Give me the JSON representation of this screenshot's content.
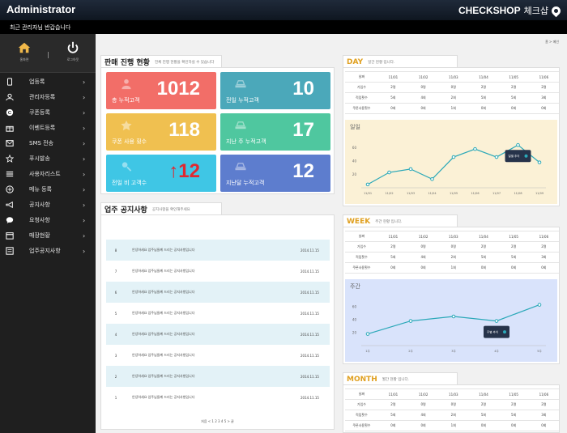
{
  "header": {
    "title": "Administrator",
    "brand": "CHECKSHOP",
    "brand_sub": "체크샵"
  },
  "notice": "최근 관리자님 반갑습니다",
  "sidebar": {
    "home_label": "홈화면",
    "logout_label": "로그아웃",
    "items": [
      {
        "label": "업등록",
        "icon": "phone-icon"
      },
      {
        "label": "관리자등록",
        "icon": "user-icon"
      },
      {
        "label": "쿠폰등록",
        "icon": "coupon-icon"
      },
      {
        "label": "이벤트등록",
        "icon": "gift-icon"
      },
      {
        "label": "SMS 전송",
        "icon": "mail-icon"
      },
      {
        "label": "푸시발송",
        "icon": "star-icon"
      },
      {
        "label": "사용자리스트",
        "icon": "list-icon"
      },
      {
        "label": "메뉴 등록",
        "icon": "plus-icon"
      },
      {
        "label": "공지사항",
        "icon": "megaphone-icon"
      },
      {
        "label": "요청사항",
        "icon": "chat-icon"
      },
      {
        "label": "매장현황",
        "icon": "calendar-icon"
      },
      {
        "label": "업주공지사항",
        "icon": "board-icon"
      }
    ]
  },
  "breadcrumb": "홈 > 메인",
  "sales_panel": {
    "title": "판매 진행 현황",
    "subtitle": "전체 진행 현황을 확인하실 수 있습니다",
    "cards": [
      {
        "label": "총 누적고객",
        "value": "1012",
        "color": "#f26e68",
        "icon": "person-icon"
      },
      {
        "label": "전일 누적고객",
        "value": "10",
        "color": "#4ba8ba",
        "icon": "stack-icon"
      },
      {
        "label": "쿠폰 사용 횟수",
        "value": "118",
        "color": "#f0c050",
        "icon": "badge-icon"
      },
      {
        "label": "지난 주 누적고객",
        "value": "17",
        "color": "#4fc79f",
        "icon": "stack-icon"
      },
      {
        "label": "전일 비 고객수",
        "value": "12",
        "color": "#3fc6e5",
        "icon": "person-search-icon",
        "up_arrow": "↑"
      },
      {
        "label": "지난달 누적고객",
        "value": "12",
        "color": "#5d7dce",
        "icon": "stack-icon"
      }
    ]
  },
  "notice_panel": {
    "title": "업주 공지사항",
    "subtitle": "공지사항을 확인해주세요",
    "rows": [
      {
        "num": "8",
        "title": "안녕하세요 업주님들께 드리는 공지사항입니다",
        "date": "2014.11.15"
      },
      {
        "num": "7",
        "title": "안녕하세요 업주님들께 드리는 공지사항입니다",
        "date": "2014.11.15"
      },
      {
        "num": "6",
        "title": "안녕하세요 업주님들께 드리는 공지사항입니다",
        "date": "2014.11.15"
      },
      {
        "num": "5",
        "title": "안녕하세요 업주님들께 드리는 공지사항입니다",
        "date": "2014.11.15"
      },
      {
        "num": "4",
        "title": "안녕하세요 업주님들께 드리는 공지사항입니다",
        "date": "2014.11.15"
      },
      {
        "num": "3",
        "title": "안녕하세요 업주님들께 드리는 공지사항입니다",
        "date": "2014.11.15"
      },
      {
        "num": "2",
        "title": "안녕하세요 업주님들께 드리는 공지사항입니다",
        "date": "2014.11.15"
      },
      {
        "num": "1",
        "title": "안녕하세요 업주님들께 드리는 공지사항입니다",
        "date": "2014.11.15"
      }
    ],
    "pager": "처음 < 1 2 3 4 5 > 끝"
  },
  "day_panel": {
    "title": "DAY",
    "subtitle": "일간 현황 입니다.",
    "columns": [
      "날짜",
      "11/01",
      "11/02",
      "11/03",
      "11/04",
      "11/05",
      "11/06"
    ],
    "rows": [
      {
        "label": "가입수",
        "values": [
          "2명",
          "0명",
          "0명",
          "2명",
          "2명",
          "2명"
        ]
      },
      {
        "label": "적립횟수",
        "values": [
          "5회",
          "4회",
          "2회",
          "5회",
          "5회",
          "3회"
        ]
      },
      {
        "label": "쿠폰사용횟수",
        "values": [
          "0회",
          "0회",
          "1회",
          "0회",
          "0회",
          "0회"
        ]
      }
    ],
    "chart_title": "일일",
    "tooltip_label": "일별 추이"
  },
  "week_panel": {
    "title": "WEEK",
    "subtitle": "주간 현황 입니다.",
    "columns": [
      "날짜",
      "11/01",
      "11/02",
      "11/03",
      "11/04",
      "11/05",
      "11/06"
    ],
    "rows": [
      {
        "label": "가입수",
        "values": [
          "2명",
          "0명",
          "0명",
          "2명",
          "2명",
          "2명"
        ]
      },
      {
        "label": "적립횟수",
        "values": [
          "5회",
          "4회",
          "2회",
          "5회",
          "5회",
          "3회"
        ]
      },
      {
        "label": "쿠폰사용횟수",
        "values": [
          "0회",
          "0회",
          "1회",
          "0회",
          "0회",
          "0회"
        ]
      }
    ],
    "chart_title": "주간",
    "tooltip_label": "주별 추이"
  },
  "month_panel": {
    "title": "MONTH",
    "subtitle": "월간 현황 입니다.",
    "columns": [
      "날짜",
      "11/01",
      "11/02",
      "11/03",
      "11/04",
      "11/05",
      "11/06"
    ],
    "rows": [
      {
        "label": "가입수",
        "values": [
          "2명",
          "0명",
          "0명",
          "2명",
          "2명",
          "2명"
        ]
      },
      {
        "label": "적립횟수",
        "values": [
          "5회",
          "4회",
          "2회",
          "5회",
          "5회",
          "3회"
        ]
      },
      {
        "label": "쿠폰사용횟수",
        "values": [
          "0회",
          "0회",
          "1회",
          "0회",
          "0회",
          "0회"
        ]
      }
    ]
  },
  "colors": {
    "day_bg": "#fbf1d6",
    "week_bg": "#d9e3fb",
    "line": "#2aa8b8",
    "tooltip": "#26334a"
  },
  "chart_data": [
    {
      "type": "line",
      "title": "일일",
      "x": [
        "11/01",
        "11/02",
        "11/03",
        "11/04",
        "11/05",
        "11/06",
        "11/07",
        "11/08",
        "11/09"
      ],
      "values": [
        5,
        23,
        28,
        13,
        46,
        58,
        46,
        64,
        38
      ],
      "ylim": [
        0,
        80
      ],
      "yticks": [
        20,
        40,
        60
      ],
      "grid": false
    },
    {
      "type": "line",
      "title": "주간",
      "x": [
        "1주",
        "2주",
        "3주",
        "4주",
        "5주"
      ],
      "values": [
        18,
        38,
        45,
        38,
        63
      ],
      "ylim": [
        0,
        80
      ],
      "yticks": [
        20,
        40,
        60
      ],
      "grid": false
    }
  ]
}
